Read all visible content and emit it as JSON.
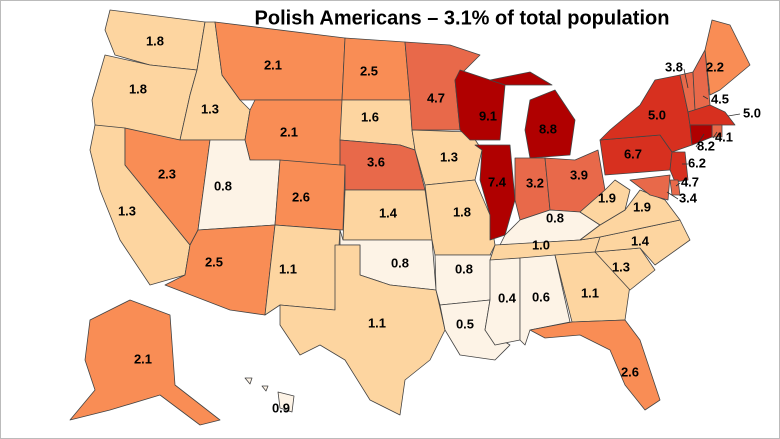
{
  "title": "Polish Americans – 3.1% of total population",
  "map": {
    "values": [
      1.8,
      1.8,
      1.3,
      2.1,
      2.1,
      1.3,
      2.3,
      0.8,
      2.6,
      2.5,
      1.1,
      2.5,
      1.6,
      3.6,
      1.4,
      0.8,
      1.1,
      4.7,
      1.3,
      1.8,
      0.8,
      0.5,
      9.1,
      7.4,
      8.8,
      3.2,
      3.9,
      0.8,
      1.0,
      0.4,
      0.6,
      1.1,
      2.6,
      1.3,
      1.4,
      1.9,
      1.9,
      6.7,
      5.0,
      3.8,
      4.5,
      2.2,
      5.0,
      4.1,
      8.2,
      6.2,
      4.7,
      3.4,
      2.1,
      0.9
    ],
    "colors": [
      "#fdd5a0",
      "#fdd5a0",
      "#fdd5a0",
      "#f98d55",
      "#f98d55",
      "#fdd5a0",
      "#f98d55",
      "#fdf3e6",
      "#f98d55",
      "#f98d55",
      "#fdd5a0",
      "#f98d55",
      "#fdd5a0",
      "#e8694a",
      "#fdd5a0",
      "#fdf3e6",
      "#fdd5a0",
      "#e8694a",
      "#fdd5a0",
      "#fdd5a0",
      "#fdf3e6",
      "#fdf3e6",
      "#b00000",
      "#b00000",
      "#b00000",
      "#e8694a",
      "#e8694a",
      "#fdf3e6",
      "#fdd5a0",
      "#fdf3e6",
      "#fdf3e6",
      "#fdd5a0",
      "#f98d55",
      "#fdd5a0",
      "#fdd5a0",
      "#fdd5a0",
      "#fdd5a0",
      "#d7301f",
      "#d7301f",
      "#e8694a",
      "#e8694a",
      "#f98d55",
      "#d7301f",
      "#e8694a",
      "#b00000",
      "#d7301f",
      "#e8694a",
      "#e8694a",
      "#f98d55",
      "#fdf3e6"
    ]
  }
}
